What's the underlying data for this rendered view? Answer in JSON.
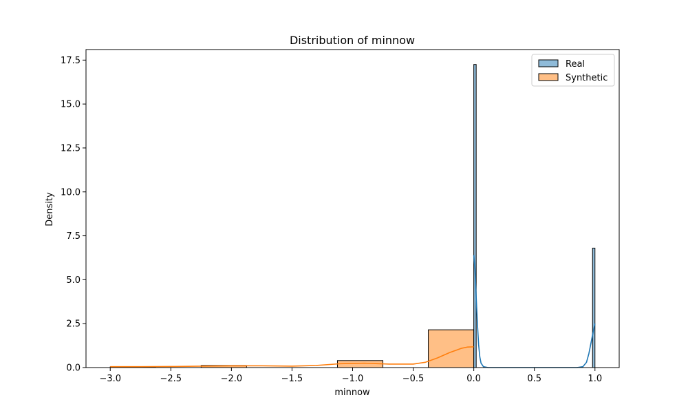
{
  "chart_data": {
    "type": "bar",
    "title": "Distribution of minnow",
    "xlabel": "minnow",
    "ylabel": "Density",
    "xlim": [
      -3.2,
      1.2
    ],
    "ylim": [
      0,
      18.1
    ],
    "xticks": [
      -3.0,
      -2.5,
      -2.0,
      -1.5,
      -1.0,
      -0.5,
      0.0,
      0.5,
      1.0
    ],
    "xtick_labels": [
      "−3.0",
      "−2.5",
      "−2.0",
      "−1.5",
      "−1.0",
      "−0.5",
      "0.0",
      "0.5",
      "1.0"
    ],
    "yticks": [
      0.0,
      2.5,
      5.0,
      7.5,
      10.0,
      12.5,
      15.0,
      17.5
    ],
    "ytick_labels": [
      "0.0",
      "2.5",
      "5.0",
      "7.5",
      "10.0",
      "12.5",
      "15.0",
      "17.5"
    ],
    "grid": false,
    "legend_position": "top-right",
    "series": [
      {
        "name": "Real",
        "kind": "histogram+kde",
        "color": "#1f77b4",
        "fill": "#8fbbd9",
        "bins": [
          {
            "x0": 0.0,
            "x1": 0.02,
            "height": 17.25
          },
          {
            "x0": 0.98,
            "x1": 1.0,
            "height": 6.8
          }
        ],
        "kde": [
          [
            0.0,
            6.4
          ],
          [
            0.01,
            5.6
          ],
          [
            0.02,
            4.0
          ],
          [
            0.03,
            2.5
          ],
          [
            0.04,
            1.3
          ],
          [
            0.05,
            0.6
          ],
          [
            0.06,
            0.25
          ],
          [
            0.08,
            0.05
          ],
          [
            0.12,
            0.0
          ],
          [
            0.3,
            0.0
          ],
          [
            0.6,
            0.0
          ],
          [
            0.85,
            0.0
          ],
          [
            0.9,
            0.05
          ],
          [
            0.93,
            0.3
          ],
          [
            0.95,
            0.8
          ],
          [
            0.97,
            1.5
          ],
          [
            0.99,
            2.2
          ],
          [
            1.0,
            2.5
          ]
        ]
      },
      {
        "name": "Synthetic",
        "kind": "histogram+kde",
        "color": "#ff7f0e",
        "fill": "#ffbf86",
        "bins": [
          {
            "x0": -3.0,
            "x1": -2.625,
            "height": 0.04
          },
          {
            "x0": -2.25,
            "x1": -1.875,
            "height": 0.12
          },
          {
            "x0": -1.125,
            "x1": -0.75,
            "height": 0.4
          },
          {
            "x0": -0.375,
            "x1": 0.0,
            "height": 2.15
          }
        ],
        "kde": [
          [
            -3.0,
            0.05
          ],
          [
            -2.75,
            0.05
          ],
          [
            -2.5,
            0.06
          ],
          [
            -2.25,
            0.08
          ],
          [
            -2.0,
            0.1
          ],
          [
            -1.75,
            0.1
          ],
          [
            -1.5,
            0.08
          ],
          [
            -1.3,
            0.12
          ],
          [
            -1.1,
            0.22
          ],
          [
            -0.9,
            0.25
          ],
          [
            -0.7,
            0.2
          ],
          [
            -0.5,
            0.2
          ],
          [
            -0.4,
            0.3
          ],
          [
            -0.3,
            0.55
          ],
          [
            -0.2,
            0.85
          ],
          [
            -0.1,
            1.1
          ],
          [
            -0.05,
            1.17
          ],
          [
            0.0,
            1.18
          ]
        ]
      }
    ]
  }
}
